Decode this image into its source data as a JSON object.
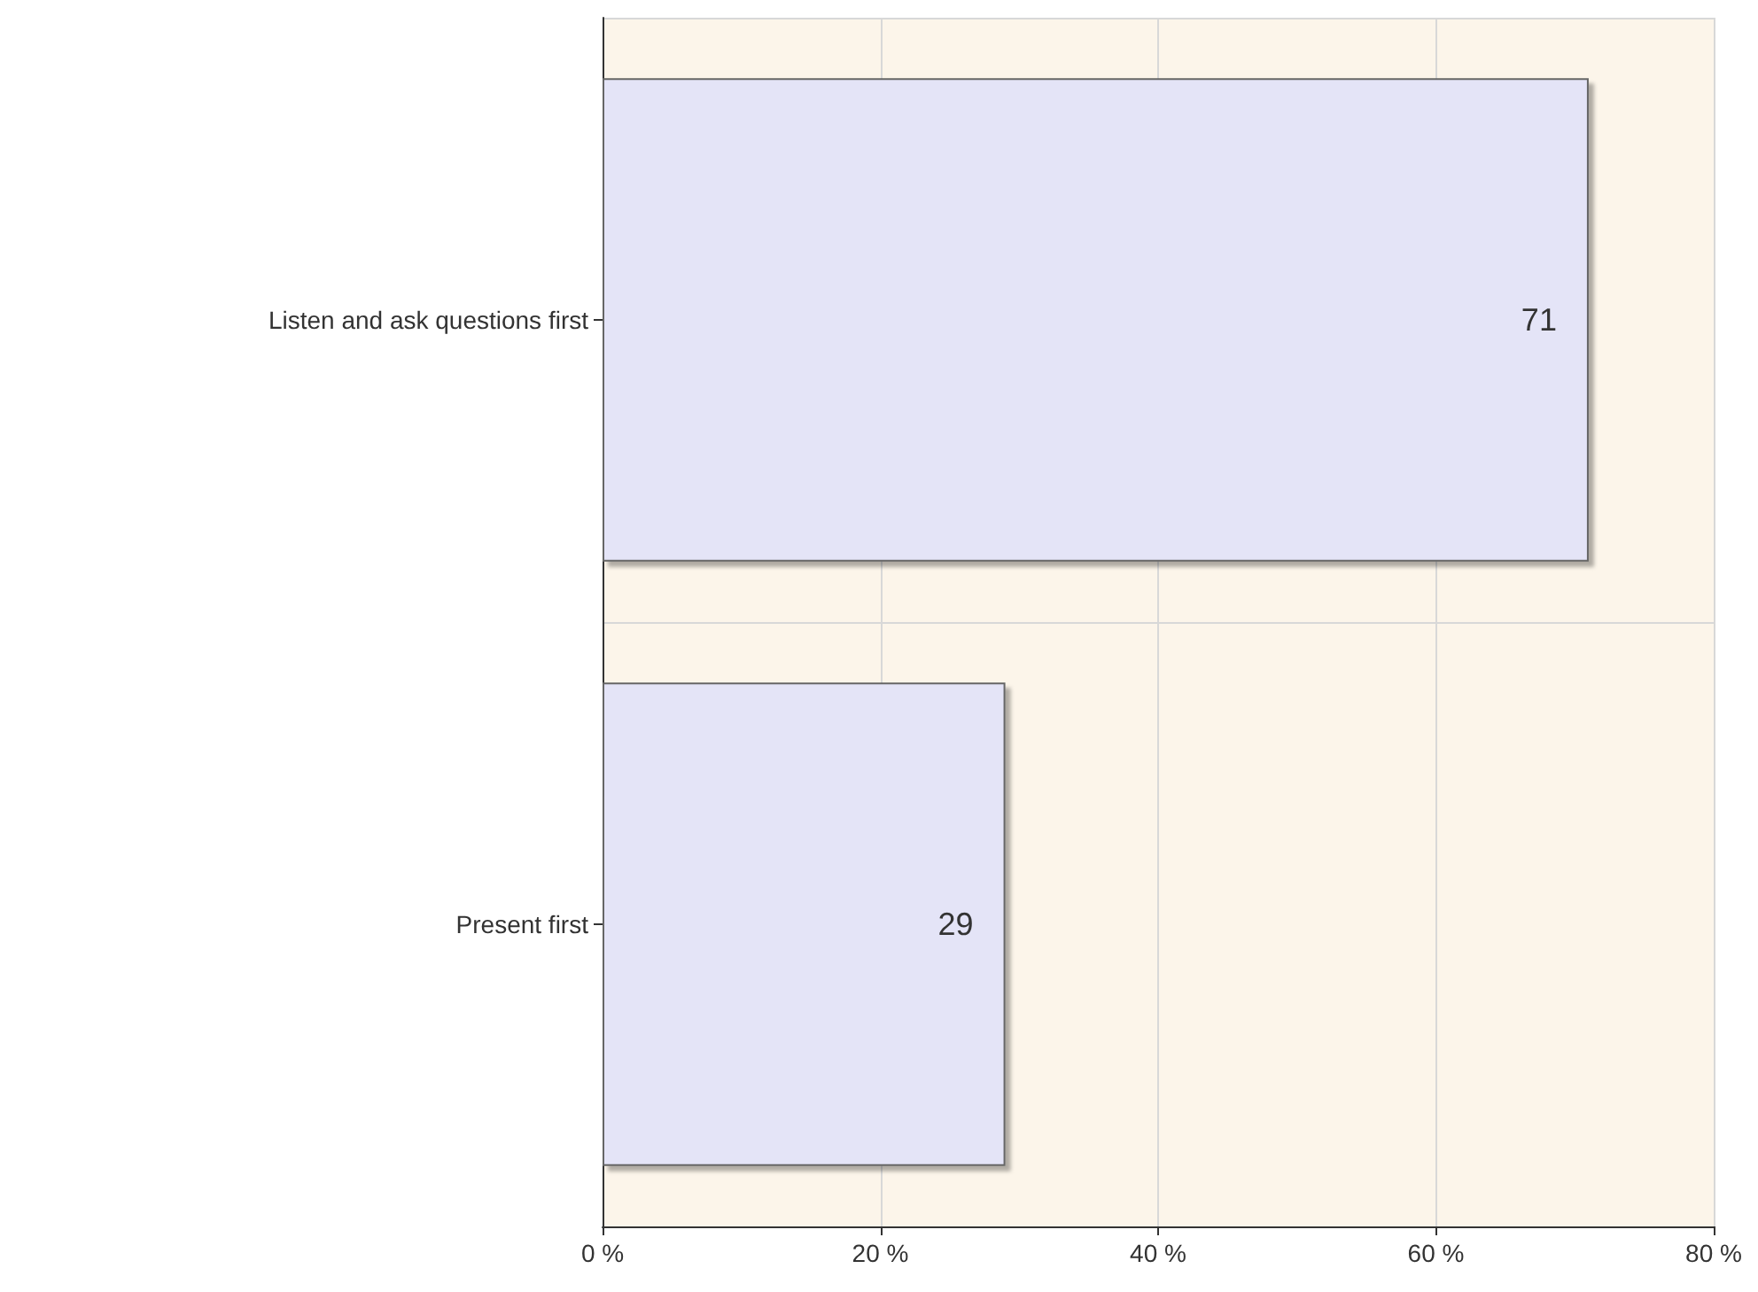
{
  "chart_data": {
    "type": "bar",
    "orientation": "horizontal",
    "categories": [
      "Listen and ask questions first",
      "Present first"
    ],
    "values": [
      71,
      29
    ],
    "color": "#e4e4f7",
    "xlim": [
      0,
      80
    ],
    "xticks": [
      {
        "value": 0,
        "label": "0 %"
      },
      {
        "value": 20,
        "label": "20 %"
      },
      {
        "value": 40,
        "label": "40 %"
      },
      {
        "value": 60,
        "label": "60 %"
      },
      {
        "value": 80,
        "label": "80 %"
      }
    ],
    "grid": true,
    "data_labels": true
  }
}
